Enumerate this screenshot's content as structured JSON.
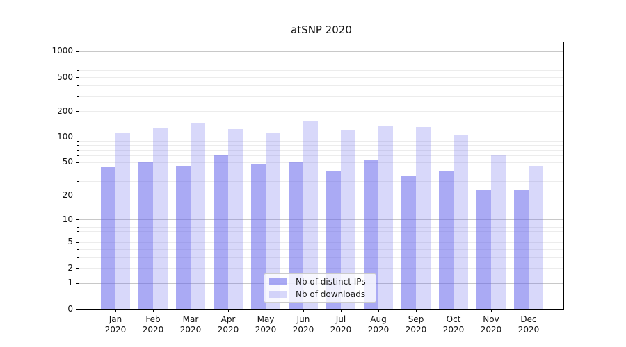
{
  "chart_data": {
    "type": "bar",
    "title": "atSNP 2020",
    "categories": [
      "Jan",
      "Feb",
      "Mar",
      "Apr",
      "May",
      "Jun",
      "Jul",
      "Aug",
      "Sep",
      "Oct",
      "Nov",
      "Dec"
    ],
    "year_label": "2020",
    "series": [
      {
        "name": "Nb of distinct IPs",
        "color_hex": "#aaaaf4",
        "color_rgba": "rgba(100,100,235,0.55)",
        "values": [
          44,
          51,
          45,
          62,
          48,
          50,
          40,
          53,
          34,
          40,
          23,
          23
        ]
      },
      {
        "name": "Nb of downloads",
        "color_hex": "#d8d8fa",
        "color_rgba": "rgba(100,100,235,0.25)",
        "values": [
          113,
          128,
          145,
          124,
          112,
          153,
          120,
          136,
          130,
          104,
          61,
          45
        ]
      }
    ],
    "xlabel": "",
    "ylabel": "",
    "yscale": "log1p",
    "ylim": [
      0,
      1300
    ],
    "ytick_labels": [
      1000,
      500,
      200,
      100,
      50,
      20,
      10,
      5,
      2,
      1,
      0
    ],
    "major_gridlines": [
      1,
      10,
      100,
      1000
    ],
    "minor_gridlines": [
      2,
      3,
      4,
      5,
      6,
      7,
      8,
      9,
      20,
      30,
      40,
      50,
      60,
      70,
      80,
      90,
      200,
      300,
      400,
      500,
      600,
      700,
      800,
      900
    ],
    "grid": true,
    "legend_position": "lower center",
    "colors": {
      "major_gridline": "#c8c8c8",
      "minor_gridline": "#ececec",
      "axis": "#000000",
      "text": "#111111"
    }
  }
}
